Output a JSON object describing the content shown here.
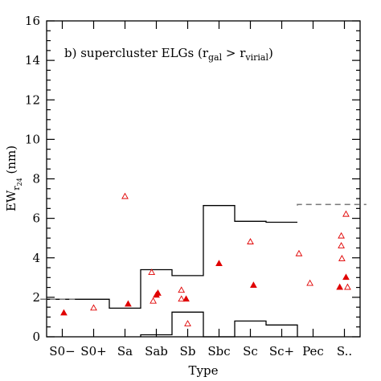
{
  "chart_data": {
    "type": "scatter",
    "annotation": {
      "prefix": "b) supercluster ELGs (r",
      "sub1": "gal",
      "mid": " > r",
      "sub2": "virial",
      "suffix": ")"
    },
    "xlabel": "Type",
    "ylabel": {
      "main": "EW",
      "sub": "r",
      "subsub": "24",
      "unit": " (nm)"
    },
    "categories": [
      "S0−",
      "S0+",
      "Sa",
      "Sab",
      "Sb",
      "Sbc",
      "Sc",
      "Sc+",
      "Pec",
      "S.."
    ],
    "ylim": [
      0,
      16
    ],
    "yticks": [
      "0",
      "2",
      "4",
      "6",
      "8",
      "10",
      "12",
      "14",
      "16"
    ],
    "grid": false,
    "colors": {
      "points": "#e00000",
      "lines": "#000000",
      "dashed": "#777777"
    },
    "series": [
      {
        "marker": "filled-triangle",
        "points": [
          [
            0.05,
            1.2
          ],
          [
            2.1,
            1.65
          ],
          [
            3.0,
            2.1
          ],
          [
            3.05,
            2.2
          ],
          [
            3.95,
            1.9
          ],
          [
            5.0,
            3.7
          ],
          [
            6.1,
            2.6
          ],
          [
            8.85,
            2.5
          ],
          [
            9.05,
            3.0
          ]
        ]
      },
      {
        "marker": "open-triangle",
        "points": [
          [
            1.0,
            1.45
          ],
          [
            2.0,
            7.1
          ],
          [
            2.85,
            3.25
          ],
          [
            2.9,
            1.8
          ],
          [
            3.8,
            2.35
          ],
          [
            3.8,
            1.9
          ],
          [
            4.0,
            0.65
          ],
          [
            6.0,
            4.8
          ],
          [
            7.55,
            4.2
          ],
          [
            7.9,
            2.7
          ],
          [
            8.9,
            5.1
          ],
          [
            8.9,
            4.6
          ],
          [
            8.92,
            3.95
          ],
          [
            9.05,
            6.2
          ],
          [
            9.1,
            2.5
          ]
        ]
      }
    ],
    "upper_envelope": [
      [
        -0.5,
        1.9
      ],
      [
        1.5,
        1.9
      ],
      [
        1.5,
        1.45
      ],
      [
        2.5,
        1.45
      ],
      [
        2.5,
        3.4
      ],
      [
        3.5,
        3.4
      ],
      [
        3.5,
        3.1
      ],
      [
        4.5,
        3.1
      ],
      [
        4.5,
        6.65
      ],
      [
        5.5,
        6.65
      ],
      [
        5.5,
        5.85
      ],
      [
        6.5,
        5.85
      ],
      [
        6.5,
        5.8
      ],
      [
        7.5,
        5.8
      ]
    ],
    "lower_envelope": [
      [
        2.5,
        0
      ],
      [
        2.5,
        0.1
      ],
      [
        3.5,
        0.1
      ],
      [
        3.5,
        1.25
      ],
      [
        4.5,
        1.25
      ],
      [
        4.5,
        0
      ],
      [
        5.5,
        0
      ],
      [
        5.5,
        0.8
      ],
      [
        6.5,
        0.8
      ],
      [
        6.5,
        0.6
      ],
      [
        7.5,
        0.6
      ],
      [
        7.5,
        0
      ]
    ],
    "dashed_segments": [
      [
        [
          -0.7,
          1.9
        ],
        [
          0.5,
          1.9
        ]
      ],
      [
        [
          7.5,
          6.65
        ],
        [
          7.5,
          6.7
        ],
        [
          9.7,
          6.7
        ]
      ]
    ]
  }
}
